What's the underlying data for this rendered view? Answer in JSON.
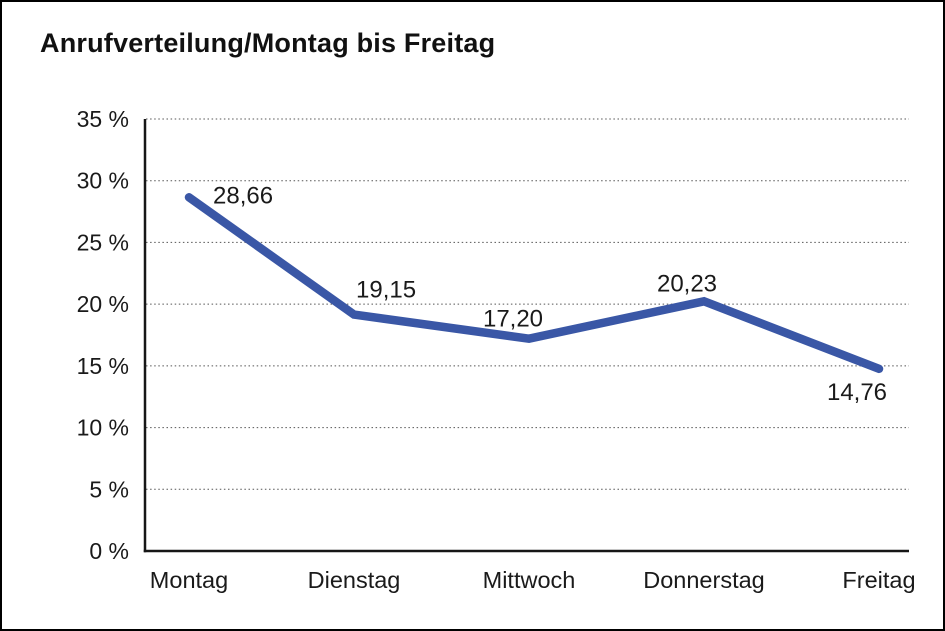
{
  "window": {
    "background_color": "#ffffff",
    "border_color": "#000000"
  },
  "header": {
    "title": "Anrufverteilung/Montag bis Freitag"
  },
  "chart_data": {
    "type": "line",
    "title": "Anrufverteilung/Montag bis Freitag",
    "categories": [
      "Montag",
      "Dienstag",
      "Mittwoch",
      "Donnerstag",
      "Freitag"
    ],
    "values": [
      28.66,
      19.15,
      17.2,
      20.23,
      14.76
    ],
    "value_labels": [
      "28,66",
      "19,15",
      "17,20",
      "20,23",
      "14,76"
    ],
    "unit": "%",
    "xlabel": "",
    "ylabel": "",
    "ylim": [
      0,
      35
    ],
    "ytick_step": 5,
    "ytick_labels": [
      "0 %",
      "5 %",
      "10 %",
      "15 %",
      "20 %",
      "25 %",
      "30 %",
      "35 %"
    ],
    "grid": "horizontal-dotted",
    "legend_position": "none",
    "line_color": "#3A57A6",
    "grid_color": "#555555",
    "axis_color": "#161616",
    "text_color": "#1a1a1a"
  }
}
